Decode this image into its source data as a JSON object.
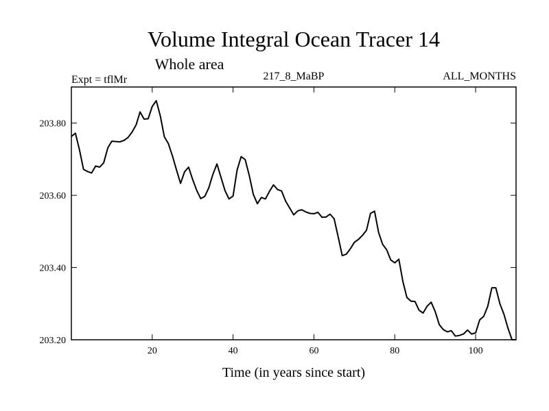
{
  "chart_data": {
    "type": "line",
    "title": "Volume Integral Ocean Tracer 14",
    "subtitle": "Whole area",
    "expt_label": "Expt = tflMr",
    "run_label": "217_8_MaBP",
    "months_label": "ALL_MONTHS",
    "xlabel": "Time (in years since start)",
    "ylabel": "",
    "xlim": [
      0,
      110
    ],
    "ylim": [
      203.2,
      203.9
    ],
    "xticks": [
      20,
      40,
      60,
      80,
      100
    ],
    "xtick_labels": [
      "20",
      "40",
      "60",
      "80",
      "100"
    ],
    "yticks": [
      203.2,
      203.4,
      203.6,
      203.8
    ],
    "ytick_labels": [
      "203.20",
      "203.40",
      "203.60",
      "203.80"
    ],
    "grid": false,
    "line_color": "#000000",
    "series": [
      {
        "x": [
          0,
          1,
          2,
          3,
          4,
          5,
          6,
          7,
          8,
          9,
          10,
          11,
          12,
          13,
          14,
          15,
          16,
          17,
          18,
          19,
          20,
          21,
          22,
          23,
          24,
          25,
          26,
          27,
          28,
          29,
          30,
          31,
          32,
          33,
          34,
          35,
          36,
          37,
          38,
          39,
          40,
          41,
          42,
          43,
          44,
          45,
          46,
          47,
          48,
          49,
          50,
          51,
          52,
          53,
          54,
          55,
          56,
          57,
          58,
          59,
          60,
          61,
          62,
          63,
          64,
          65,
          66,
          67,
          68,
          69,
          70,
          71,
          72,
          73,
          74,
          75,
          76,
          77,
          78,
          79,
          80,
          81,
          82,
          83,
          84,
          85,
          86,
          87,
          88,
          89,
          90,
          91,
          92,
          93,
          94,
          95,
          96,
          97,
          98,
          99,
          100,
          101,
          102,
          103,
          104,
          105,
          106,
          107,
          108,
          109,
          110
        ],
        "values": [
          203.763,
          203.772,
          203.726,
          203.672,
          203.666,
          203.662,
          203.681,
          203.678,
          203.69,
          203.731,
          203.75,
          203.749,
          203.748,
          203.752,
          203.76,
          203.775,
          203.795,
          203.831,
          203.811,
          203.812,
          203.846,
          203.862,
          203.82,
          203.762,
          203.743,
          203.709,
          203.67,
          203.633,
          203.665,
          203.678,
          203.644,
          203.614,
          203.591,
          203.597,
          203.621,
          203.658,
          203.687,
          203.65,
          203.613,
          203.59,
          203.598,
          203.67,
          203.707,
          203.699,
          203.655,
          203.603,
          203.577,
          203.594,
          203.59,
          203.611,
          203.629,
          203.616,
          203.612,
          203.584,
          203.565,
          203.546,
          203.557,
          203.56,
          203.554,
          203.55,
          203.549,
          203.553,
          203.539,
          203.54,
          203.548,
          203.535,
          203.485,
          203.433,
          203.437,
          203.452,
          203.47,
          203.478,
          203.489,
          203.503,
          203.55,
          203.556,
          203.497,
          203.464,
          203.449,
          203.421,
          203.413,
          203.423,
          203.361,
          203.317,
          203.307,
          203.306,
          203.282,
          203.274,
          203.293,
          203.304,
          203.278,
          203.242,
          203.228,
          203.222,
          203.225,
          203.21,
          203.212,
          203.216,
          203.227,
          203.216,
          203.219,
          203.255,
          203.265,
          203.293,
          203.344,
          203.344,
          203.3,
          203.271,
          203.232,
          203.2,
          203.19
        ]
      }
    ]
  }
}
